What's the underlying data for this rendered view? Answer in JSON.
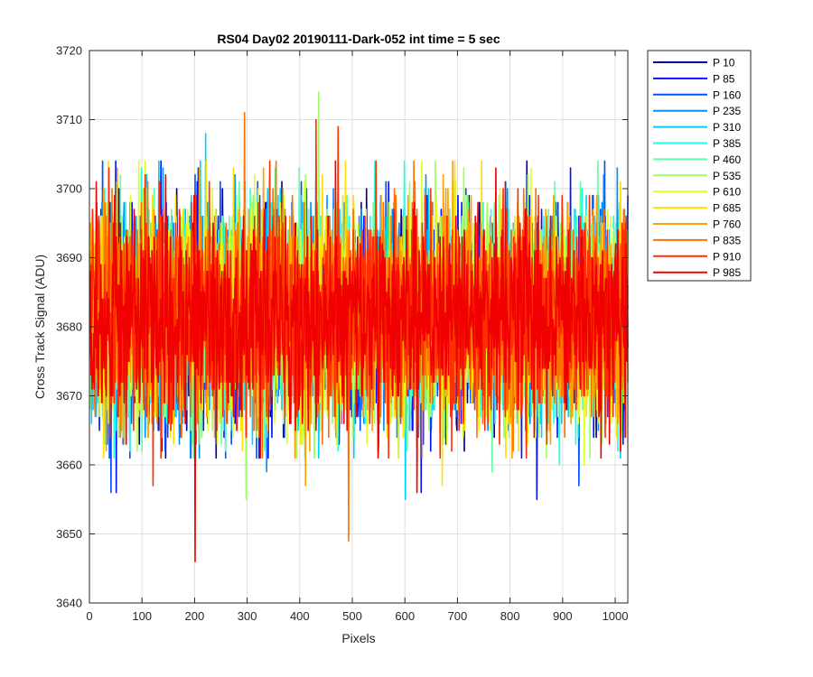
{
  "chart_data": {
    "type": "line",
    "title": "RS04 Day02 20190111-Dark-052 int time = 5 sec",
    "xlabel": "Pixels",
    "ylabel": "Cross Track Signal (ADU)",
    "xlim": [
      0,
      1024
    ],
    "ylim": [
      3640,
      3720
    ],
    "xticks": [
      0,
      100,
      200,
      300,
      400,
      500,
      600,
      700,
      800,
      900,
      1000
    ],
    "yticks": [
      3640,
      3650,
      3660,
      3670,
      3680,
      3690,
      3700,
      3710,
      3720
    ],
    "grid": true,
    "legend_location": "outside-top-right",
    "n_points": 1024,
    "noise": {
      "mean": 3681.5,
      "std": 7.5
    },
    "series": [
      {
        "name": "P 10",
        "color": "#00008F",
        "spikes": []
      },
      {
        "name": "P 85",
        "color": "#0012FF",
        "spikes": [
          [
            50,
            3656
          ],
          [
            630,
            3656
          ],
          [
            850,
            3655
          ]
        ]
      },
      {
        "name": "P 160",
        "color": "#0050FF",
        "spikes": [
          [
            40,
            3656
          ],
          [
            930,
            3657
          ]
        ]
      },
      {
        "name": "P 235",
        "color": "#0090FF",
        "spikes": [
          [
            336,
            3659
          ]
        ]
      },
      {
        "name": "P 310",
        "color": "#00D0FF",
        "spikes": [
          [
            220,
            3708
          ],
          [
            600,
            3655
          ]
        ]
      },
      {
        "name": "P 385",
        "color": "#20FFE0",
        "spikes": [
          [
            893,
            3660
          ]
        ]
      },
      {
        "name": "P 460",
        "color": "#60FFA0",
        "spikes": [
          [
            765,
            3659
          ]
        ]
      },
      {
        "name": "P 535",
        "color": "#A0FF60",
        "spikes": [
          [
            297,
            3655
          ],
          [
            435,
            3714
          ]
        ]
      },
      {
        "name": "P 610",
        "color": "#E0FF20",
        "spikes": [
          [
            940,
            3660
          ]
        ]
      },
      {
        "name": "P 685",
        "color": "#FFE000",
        "spikes": [
          [
            670,
            3657
          ]
        ]
      },
      {
        "name": "P 760",
        "color": "#FFA000",
        "spikes": [
          [
            410,
            3657
          ]
        ]
      },
      {
        "name": "P 835",
        "color": "#FF7000",
        "spikes": [
          [
            294,
            3711
          ],
          [
            492,
            3649
          ]
        ]
      },
      {
        "name": "P 910",
        "color": "#FF3000",
        "spikes": [
          [
            430,
            3710
          ],
          [
            472,
            3709
          ],
          [
            120,
            3657
          ]
        ]
      },
      {
        "name": "P 985",
        "color": "#F00000",
        "spikes": [
          [
            200,
            3646
          ],
          [
            622,
            3656
          ]
        ]
      }
    ]
  }
}
